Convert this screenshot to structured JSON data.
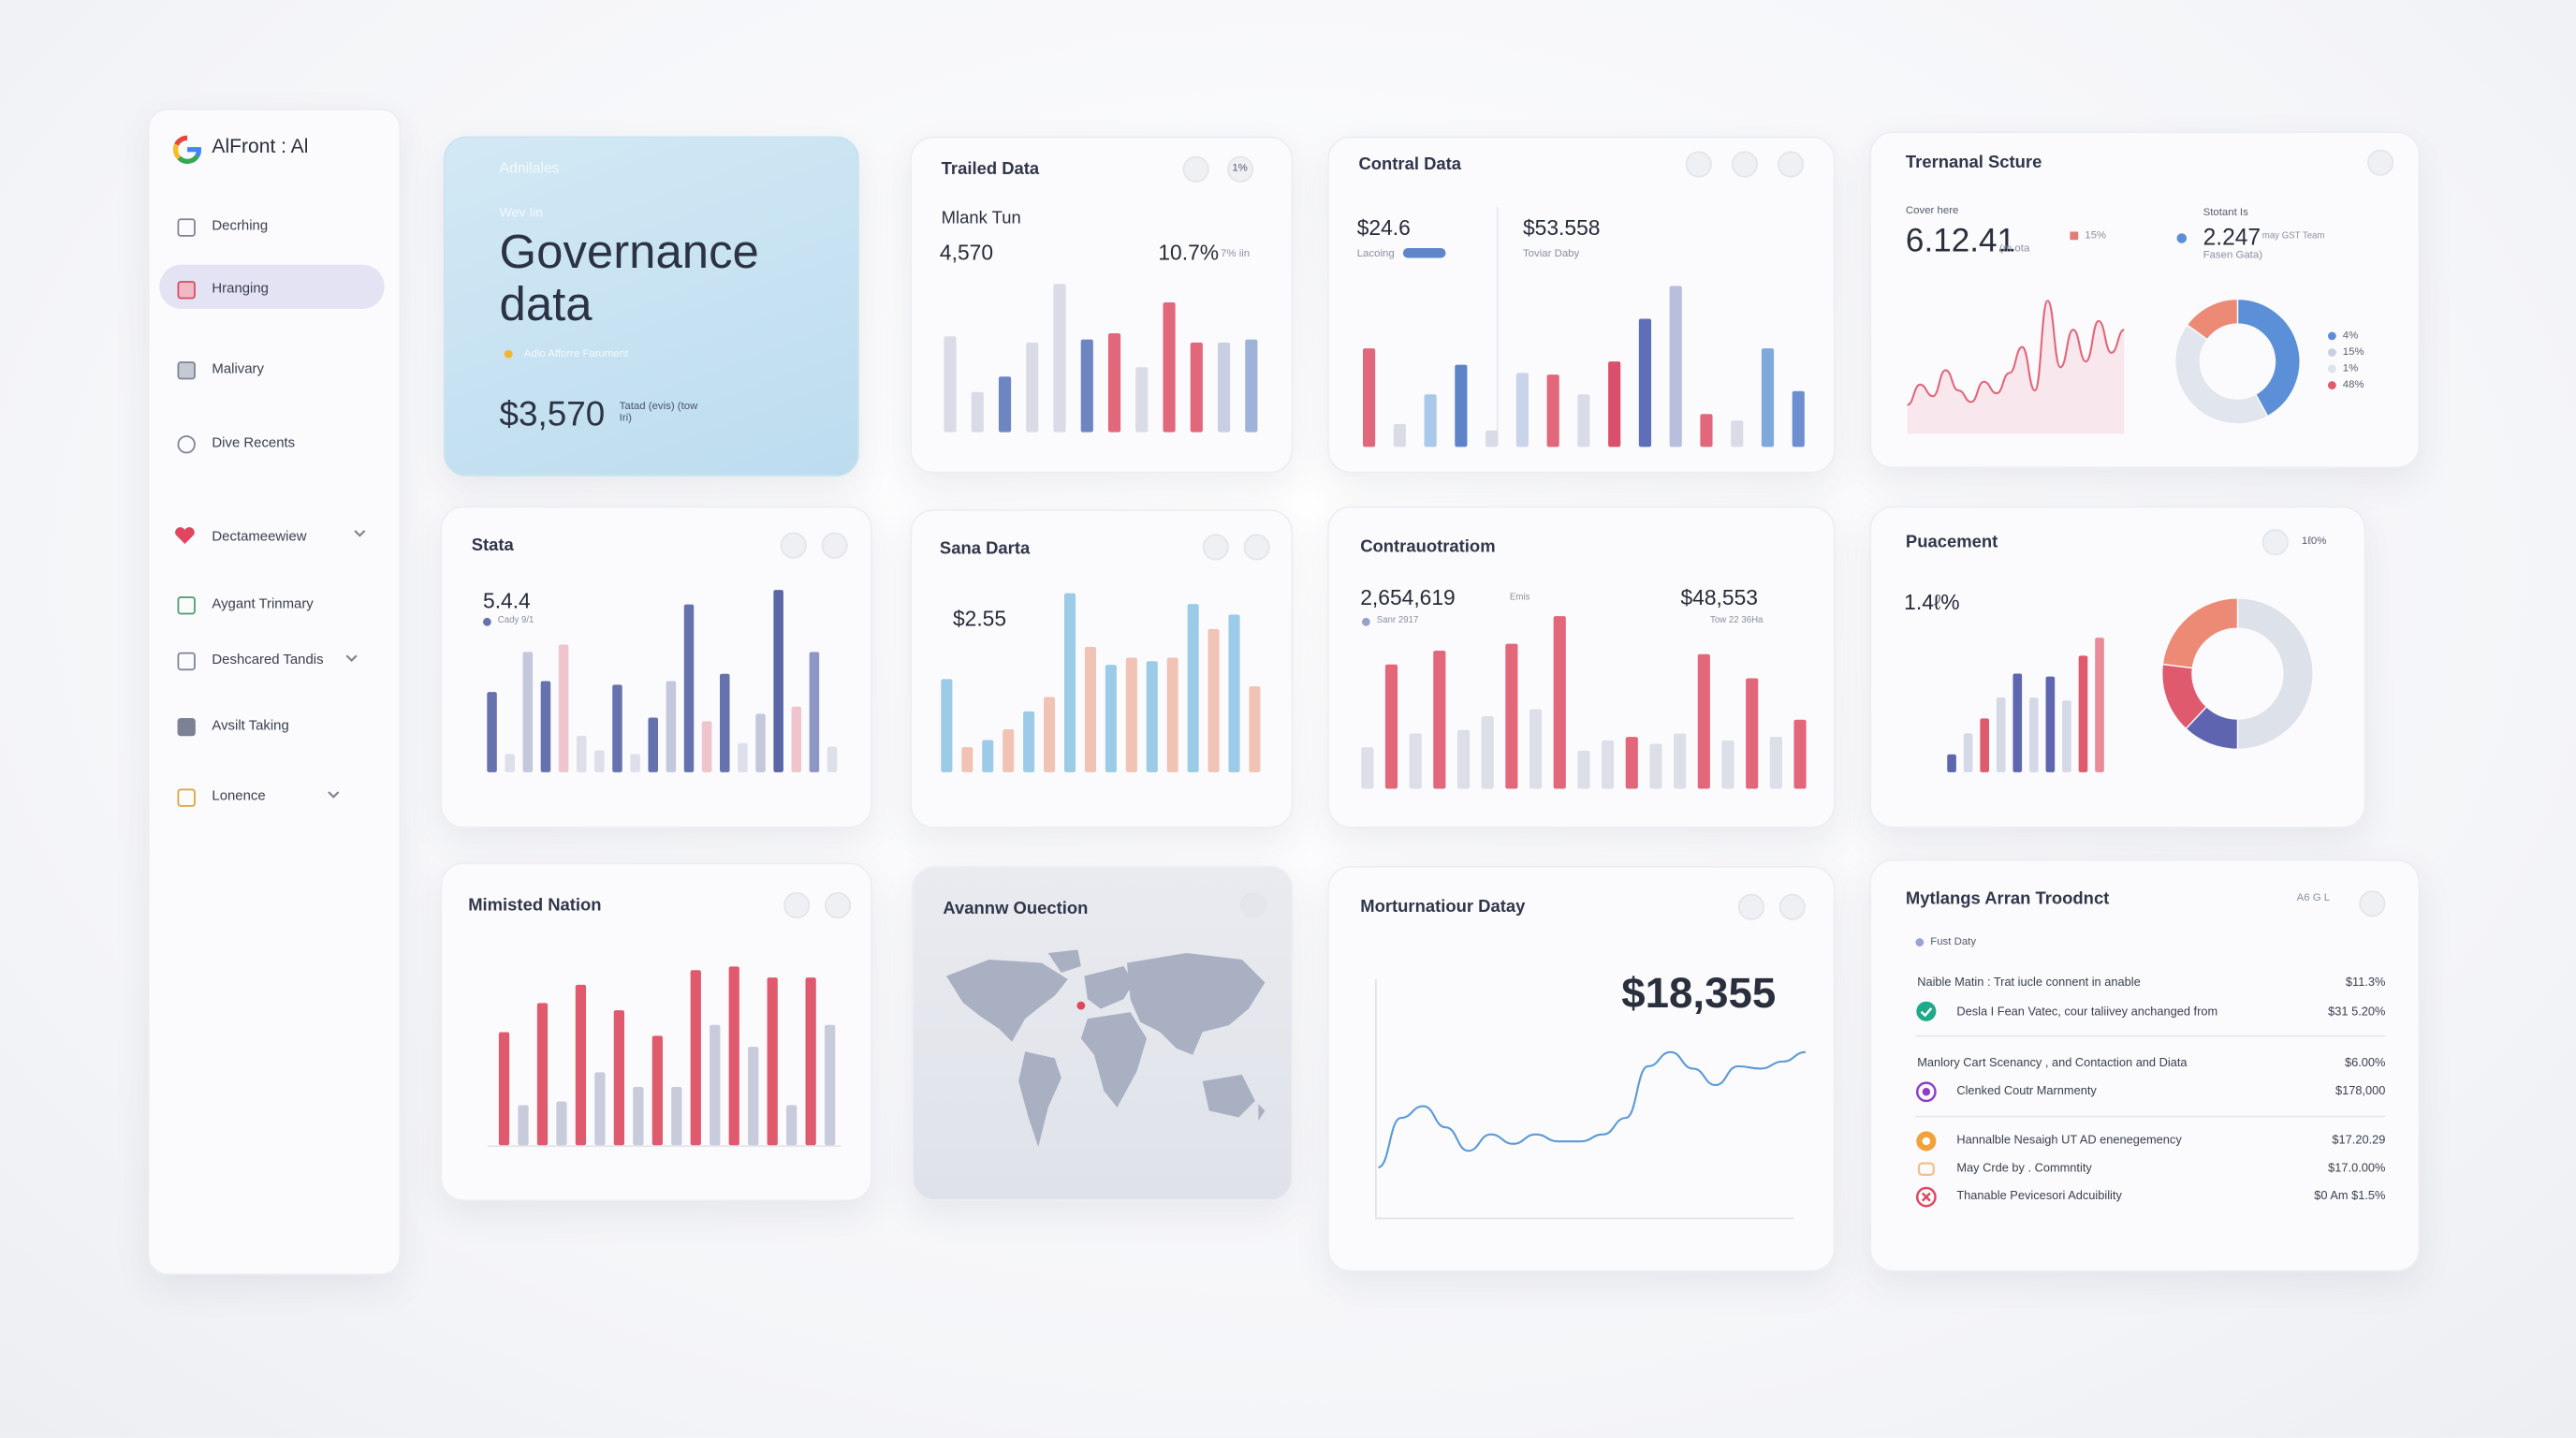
{
  "sidebar": {
    "brand": "AlFront : Al",
    "items": [
      "Decrhing",
      "Hranging",
      "Malivary",
      "Dive Recents",
      "Dectameewiew",
      "Aygant Trinmary",
      "Deshcared Tandis",
      "Avsilt Taking",
      "Lonence"
    ]
  },
  "cards": [
    {
      "eyebrow": "Adnilales",
      "kicker": "Wev Iin",
      "title": "Governance data",
      "note": "Adio Afforre Farument",
      "amount": "$3,570",
      "amount_note": "Tatad (evis) (tow Iri)"
    },
    {
      "title": "Trailed Data",
      "badge": "1%",
      "subtitle": "Mlank Tun",
      "value": "4,570",
      "change": "10.7%",
      "change_note": "7% iin",
      "chart": {
        "type": "bar",
        "ylim": [
          0,
          100
        ],
        "values": [
          62,
          26,
          36,
          58,
          96,
          60,
          64,
          42,
          84,
          58,
          58,
          60
        ],
        "colors": [
          "#d9dce6",
          "#d9dce6",
          "#6d86c2",
          "#d9dce6",
          "#d9dce6",
          "#6d86c2",
          "#e2677b",
          "#d9dce6",
          "#e2677b",
          "#e2677b",
          "#c9cfe2",
          "#9fb3da"
        ]
      }
    },
    {
      "title": "Contral Data",
      "left_value": "$24.6",
      "left_note": "Lacoing",
      "right_value": "$53.558",
      "right_note": "Toviar Daby",
      "chart": {
        "type": "bar",
        "ylim": [
          0,
          100
        ],
        "values": [
          60,
          14,
          32,
          50,
          10,
          45,
          44,
          32,
          52,
          78,
          98,
          20,
          16,
          60,
          34
        ],
        "colors": [
          "#e2677b",
          "#d9dce6",
          "#a9c8ea",
          "#5d84c6",
          "#d9dce6",
          "#c9d3ea",
          "#e2677b",
          "#d9dce6",
          "#d9506c",
          "#5d6fb8",
          "#b8bedb",
          "#e2677b",
          "#d9dce6",
          "#7fa8dc",
          "#6d8fcf"
        ]
      }
    },
    {
      "title": "Trernanal Scture",
      "left_label": "Cover here",
      "left_value": "6.12.41",
      "left_note": "(m ota",
      "left_badge": "15%",
      "right_label": "Stotant Is",
      "right_value": "2.247",
      "right_note": "may GST Team",
      "right_note2": "Fasen Gata)",
      "line": {
        "type": "line",
        "ylim": [
          0,
          100
        ],
        "color": "#e2677b",
        "fill": "#f8e3e8",
        "values": [
          20,
          34,
          26,
          44,
          30,
          22,
          36,
          28,
          42,
          60,
          30,
          92,
          46,
          72,
          50,
          78,
          56,
          72
        ]
      },
      "donut": {
        "type": "donut",
        "values": [
          42,
          43,
          15
        ],
        "colors": [
          "#5b8fd8",
          "#e1e5ee",
          "#ec8a76"
        ]
      },
      "legend": [
        {
          "label": "4%",
          "color": "#5b8fd8"
        },
        {
          "label": "15%",
          "color": "#c9cfe2"
        },
        {
          "label": "1%",
          "color": "#dfe2ea"
        },
        {
          "label": "48%",
          "color": "#e05a6e"
        }
      ]
    },
    {
      "title": "Stata",
      "value": "5.4.4",
      "note": "Cady 9/1",
      "chart": {
        "type": "bar",
        "ylim": [
          0,
          100
        ],
        "values": [
          44,
          10,
          66,
          50,
          70,
          20,
          12,
          48,
          10,
          30,
          50,
          92,
          28,
          54,
          16,
          32,
          100,
          36,
          66,
          14
        ],
        "colors": [
          "#6672ae",
          "#dde0ea",
          "#c3c8dc",
          "#6672ae",
          "#efc4cc",
          "#dde0ea",
          "#dde0ea",
          "#6672ae",
          "#dde0ea",
          "#6672ae",
          "#c3c8dc",
          "#6672ae",
          "#efc4cc",
          "#6672ae",
          "#dde0ea",
          "#c3c8dc",
          "#5a66a8",
          "#efc4cc",
          "#8d96c4",
          "#dde0ea"
        ]
      }
    },
    {
      "title": "Sana Darta",
      "value": "$2.55",
      "chart": {
        "type": "bar",
        "ylim": [
          0,
          100
        ],
        "values": [
          52,
          14,
          18,
          24,
          34,
          42,
          100,
          70,
          60,
          64,
          62,
          64,
          94,
          80,
          88,
          48
        ],
        "colors": [
          "#9ccbe8",
          "#f1c3b5",
          "#9ccbe8",
          "#f1c3b5",
          "#9ccbe8",
          "#f1c3b5",
          "#9ccbe8",
          "#f1c3b5",
          "#9ccbe8",
          "#f1c3b5",
          "#9ccbe8",
          "#f1c3b5",
          "#9ccbe8",
          "#f1c3b5",
          "#9ccbe8",
          "#f1c3b5"
        ]
      }
    },
    {
      "title": "Contrauotratiom",
      "left_value": "2,654,619",
      "left_unit": "Emis",
      "left_note": "Sanr 2917",
      "right_value": "$48,553",
      "right_note": "Tow 22 36Ha",
      "chart": {
        "type": "bar",
        "ylim": [
          0,
          100
        ],
        "values": [
          24,
          72,
          32,
          80,
          34,
          42,
          84,
          46,
          100,
          22,
          28,
          30,
          26,
          32,
          78,
          28,
          64,
          30,
          40
        ],
        "colors": [
          "#dcdfe8",
          "#e2677b",
          "#dcdfe8",
          "#e2677b",
          "#dcdfe8",
          "#dcdfe8",
          "#e2677b",
          "#dcdfe8",
          "#e2677b",
          "#dcdfe8",
          "#dcdfe8",
          "#e2677b",
          "#dcdfe8",
          "#dcdfe8",
          "#e2677b",
          "#dcdfe8",
          "#e2677b",
          "#dcdfe8",
          "#e2677b"
        ]
      }
    },
    {
      "title": "Puacement",
      "badge": "1ℓ0%",
      "value": "1.4ℓ%",
      "chart": {
        "type": "bar",
        "ylim": [
          0,
          100
        ],
        "values": [
          12,
          26,
          36,
          50,
          66,
          50,
          64,
          48,
          78,
          90
        ],
        "colors": [
          "#5e66b0",
          "#d5d9e6",
          "#e05a6e",
          "#d5d9e6",
          "#5e66b0",
          "#d5d9e6",
          "#5e66b0",
          "#d5d9e6",
          "#e05a6e",
          "#ec8a9a"
        ]
      },
      "donut": {
        "type": "donut",
        "values": [
          50,
          12,
          15,
          23
        ],
        "colors": [
          "#dde1ea",
          "#5e64b0",
          "#e05a6e",
          "#ec8a76"
        ]
      }
    },
    {
      "title": "Mimisted Nation",
      "chart": {
        "type": "bar",
        "ylim": [
          0,
          100
        ],
        "values": [
          62,
          22,
          78,
          24,
          88,
          40,
          74,
          32,
          60,
          32,
          96,
          66,
          98,
          54,
          92,
          22,
          92,
          66
        ],
        "colors": [
          "#e05a6e",
          "#c7cbdc",
          "#e05a6e",
          "#c7cbdc",
          "#e05a6e",
          "#c7cbdc",
          "#e05a6e",
          "#c7cbdc",
          "#e05a6e",
          "#c7cbdc",
          "#e05a6e",
          "#c7cbdc",
          "#e05a6e",
          "#c7cbdc",
          "#e05a6e",
          "#c7cbdc",
          "#e05a6e",
          "#c7cbdc"
        ]
      }
    },
    {
      "title": "Avannw Ouection"
    },
    {
      "title": "Morturnatiour Datay",
      "value": "$18,355",
      "line": {
        "type": "line",
        "ylim": [
          0,
          100
        ],
        "color": "#5b9ad8",
        "values": [
          20,
          41,
          46,
          37,
          27,
          34,
          30,
          34,
          31,
          31,
          34,
          41,
          63,
          69,
          62,
          55,
          63,
          62,
          65,
          69
        ]
      }
    },
    {
      "title": "Mytlangs Arran Troodnct",
      "badge": "A6 G L",
      "tag": "Fust Daty",
      "rows": [
        {
          "label": "Naible Matin : Trat iucle connent in anable",
          "value": "$11.3%"
        },
        {
          "label": "Desla I Fean Vatec, cour taliivey anchanged from",
          "value": "$31 5.20%"
        },
        {
          "label": "Manlory Cart Scenancy , and Contaction and Diata",
          "value": "$6.00%"
        },
        {
          "label": "Clenked Coutr Marnmenty",
          "value": "$178,000"
        },
        {
          "label": "Hannalble Nesaigh UT AD enenegemency",
          "value": "$17.20.29"
        },
        {
          "label": "May Crde by . Commntity",
          "value": "$17.0.00%"
        },
        {
          "label": "Thanable Pevicesori Adcuibility",
          "value": "$0 Am $1.5%"
        }
      ]
    }
  ]
}
